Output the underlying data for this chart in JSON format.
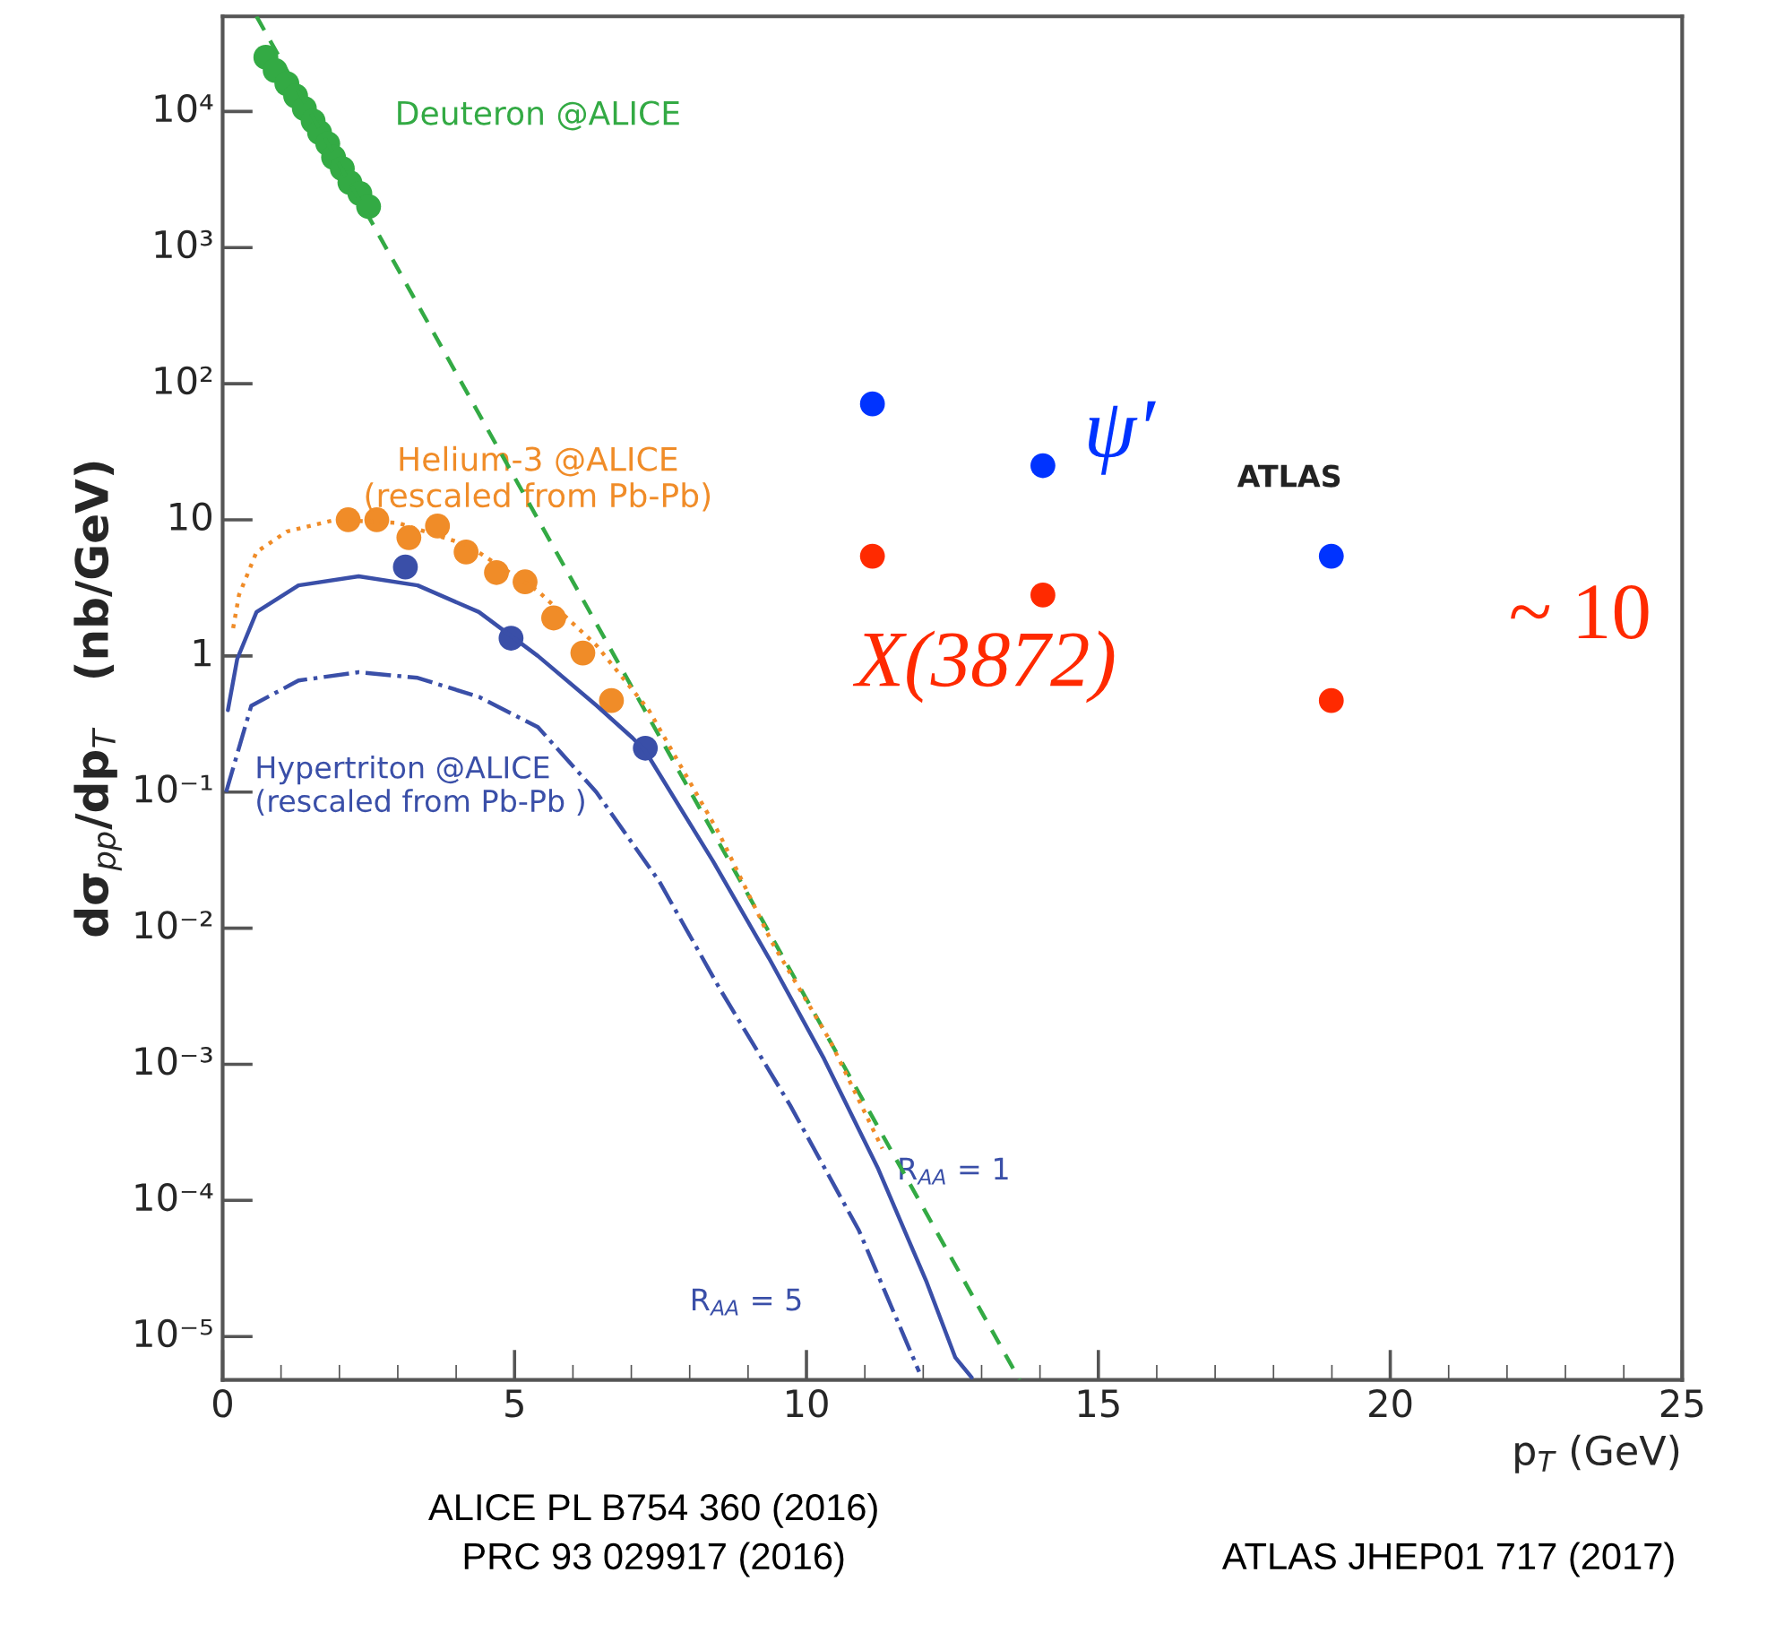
{
  "chart_data": {
    "type": "scatter",
    "xlabel": "p$_{T}$ (GeV)",
    "ylabel": "dσ$_{pp}$/dp$_{T}$   (nb/GeV)",
    "log": "y",
    "xlim": [
      0,
      25
    ],
    "xticks": [
      0,
      5,
      10,
      15,
      20,
      25
    ],
    "ylim": [
      4.8e-06,
      50000
    ],
    "yticks": [
      {
        "value": 1e-05,
        "label": "10⁻⁵"
      },
      {
        "value": 0.0001,
        "label": "10⁻⁴"
      },
      {
        "value": 0.001,
        "label": "10⁻³"
      },
      {
        "value": 0.01,
        "label": "10⁻²"
      },
      {
        "value": 0.1,
        "label": "10⁻¹"
      },
      1,
      10,
      {
        "value": 100,
        "label": "10²"
      },
      {
        "value": 1000,
        "label": "10³"
      },
      {
        "value": 10000,
        "label": "10⁴"
      }
    ],
    "series": [
      {
        "name": "Deuteron @ALICE",
        "marker": "circle",
        "color": "#33aa44",
        "x": [
          0.74,
          0.9,
          1.1,
          1.25,
          1.4,
          1.55,
          1.66,
          1.8,
          1.9,
          2.05,
          2.18,
          2.35,
          2.5
        ],
        "values": [
          25000,
          20000,
          16000,
          13000,
          10500,
          8500,
          7000,
          5800,
          4600,
          3800,
          3000,
          2500,
          2000
        ]
      },
      {
        "type": "line",
        "line_style": "dashed",
        "color": "#33aa44",
        "x": [
          0.58,
          13.65
        ],
        "values": [
          50000,
          4.8e-06
        ]
      },
      {
        "name": "Helium-3 @ALICE\n(rescaled from Pb-Pb)",
        "marker": "circle",
        "color": "#f08c28",
        "x": [
          2.15,
          2.64,
          3.19,
          3.68,
          4.17,
          4.69,
          5.18,
          5.67,
          6.17,
          6.66
        ],
        "values": [
          10,
          10,
          7.4,
          9,
          5.8,
          4.1,
          3.5,
          1.9,
          1.05,
          0.47
        ]
      },
      {
        "type": "line",
        "line_style": "dotted",
        "color": "#f08c28",
        "x": [
          0.18,
          0.28,
          0.58,
          1.1,
          1.93,
          3.0,
          4.2,
          5.4,
          6.4,
          7.3,
          8.5,
          9.4,
          10.4,
          11.3
        ],
        "values": [
          1.6,
          2.8,
          5.8,
          8.2,
          10,
          9.5,
          6.5,
          3,
          1.2,
          0.4,
          0.05,
          0.008,
          0.0015,
          0.00024
        ]
      },
      {
        "name": "Hypertriton @ALICE\n(rescaled from Pb-Pb )",
        "marker": "circle",
        "color": "#3a4fa8",
        "x": [
          3.13,
          4.94,
          7.24
        ],
        "values": [
          4.5,
          1.35,
          0.21
        ]
      },
      {
        "name": "R$_{AA}$ = 1",
        "type": "line",
        "line_style": "solid",
        "color": "#3a4fa8",
        "x": [
          0.09,
          0.25,
          0.58,
          1.3,
          2.33,
          3.34,
          4.39,
          5.4,
          6.41,
          7.02,
          7.24,
          8.4,
          9.36,
          10.3,
          11.23,
          12.06,
          12.55,
          12.83
        ],
        "values": [
          0.4,
          0.95,
          2.1,
          3.3,
          3.85,
          3.3,
          2.1,
          1,
          0.43,
          0.25,
          0.2,
          0.031,
          0.006,
          0.0011,
          0.00017,
          2.5e-05,
          7e-06,
          5e-06
        ]
      },
      {
        "name": "R$_{AA}$ = 5",
        "type": "line",
        "line_style": "dashdot",
        "color": "#3a4fa8",
        "x": [
          0.06,
          0.49,
          1.3,
          2.33,
          3.34,
          4.39,
          5.4,
          6.4,
          7.48,
          8.53,
          9.72,
          10.9,
          11.93
        ],
        "values": [
          0.1,
          0.43,
          0.66,
          0.76,
          0.69,
          0.5,
          0.3,
          0.1,
          0.022,
          0.0035,
          0.0005,
          6e-05,
          5.5e-06
        ]
      },
      {
        "name": "ψ′",
        "marker": "circle",
        "color": "#0033ff",
        "x": [
          11.13,
          14.05,
          18.99
        ],
        "values": [
          71,
          25,
          5.4
        ]
      },
      {
        "name": "X(3872)",
        "marker": "circle",
        "color": "#ff2a00",
        "x": [
          11.13,
          14.05,
          18.99
        ],
        "values": [
          5.4,
          2.8,
          0.47
        ]
      }
    ],
    "annotations": [
      "ATLAS",
      "~ 10",
      "ALICE PL B754 360 (2016)",
      "PRC 93 029917 (2016)",
      "ATLAS JHEP01 717 (2017)"
    ]
  }
}
